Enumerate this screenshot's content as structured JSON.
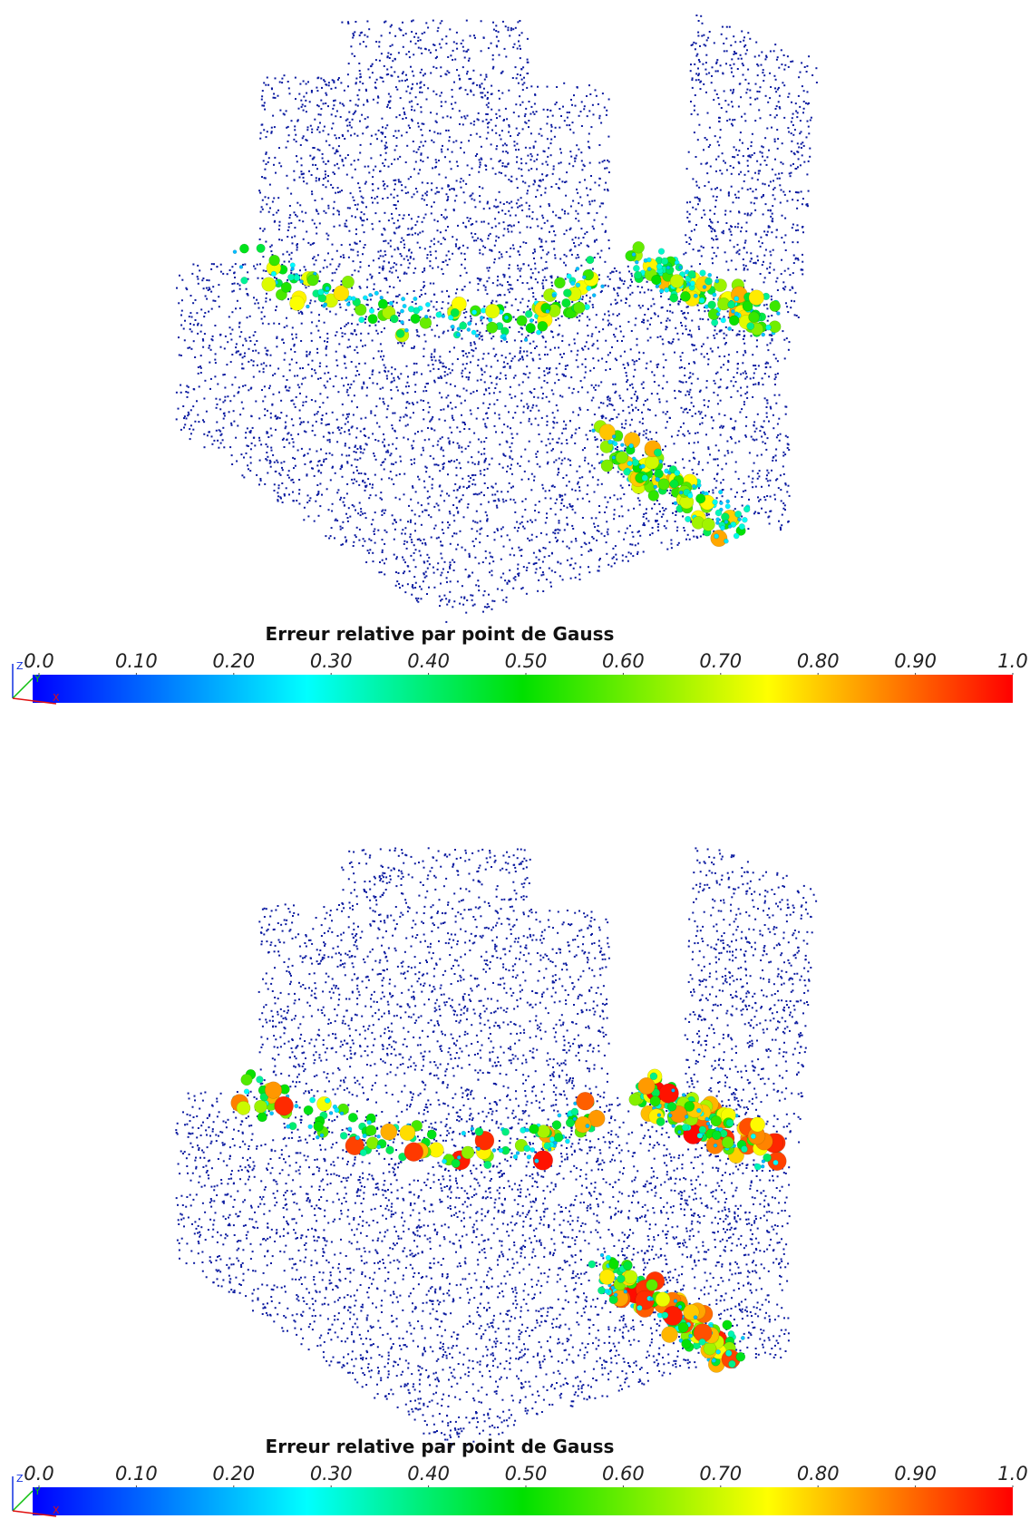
{
  "panels": [
    {
      "colorbar": {
        "title": "Erreur relative par point de Gauss",
        "range": [
          0,
          1
        ],
        "ticks": [
          {
            "value": 0,
            "label": "0.0"
          },
          {
            "value": 0.1,
            "label": "0.10"
          },
          {
            "value": 0.2,
            "label": "0.20"
          },
          {
            "value": 0.3,
            "label": "0.30"
          },
          {
            "value": 0.4,
            "label": "0.40"
          },
          {
            "value": 0.5,
            "label": "0.50"
          },
          {
            "value": 0.6,
            "label": "0.60"
          },
          {
            "value": 0.7,
            "label": "0.70"
          },
          {
            "value": 0.8,
            "label": "0.80"
          },
          {
            "value": 0.9,
            "label": "0.90"
          },
          {
            "value": 1,
            "label": "1.0"
          }
        ]
      },
      "axes": {
        "z": "Z",
        "y": "Y",
        "x": "X"
      }
    },
    {
      "colorbar": {
        "title": "Erreur relative par point de Gauss",
        "range": [
          0,
          1
        ],
        "ticks": [
          {
            "value": 0,
            "label": "0.0"
          },
          {
            "value": 0.1,
            "label": "0.10"
          },
          {
            "value": 0.2,
            "label": "0.20"
          },
          {
            "value": 0.3,
            "label": "0.30"
          },
          {
            "value": 0.4,
            "label": "0.40"
          },
          {
            "value": 0.5,
            "label": "0.50"
          },
          {
            "value": 0.6,
            "label": "0.60"
          },
          {
            "value": 0.7,
            "label": "0.70"
          },
          {
            "value": 0.8,
            "label": "0.80"
          },
          {
            "value": 0.9,
            "label": "0.90"
          },
          {
            "value": 1,
            "label": "1.0"
          }
        ]
      },
      "axes": {
        "z": "Z",
        "y": "Y",
        "x": "X"
      }
    }
  ]
}
